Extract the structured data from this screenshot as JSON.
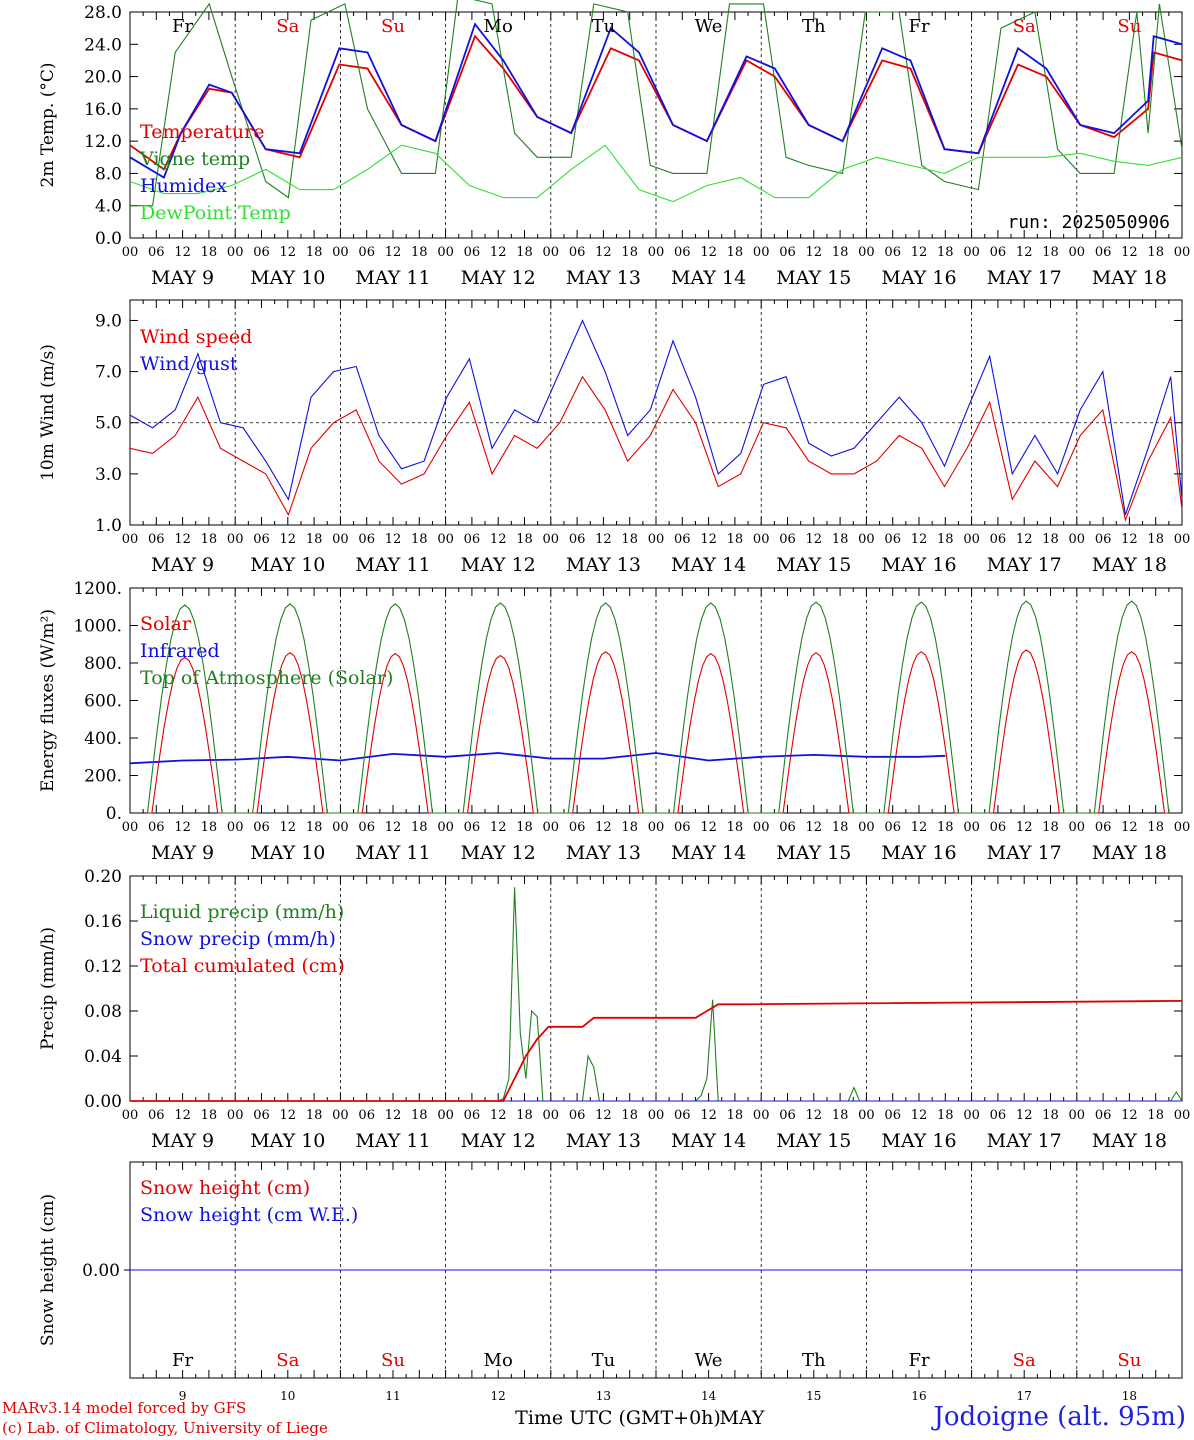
{
  "colors": {
    "red": "#e00000",
    "green_dark": "#208020",
    "blue": "#1010e0",
    "green_light": "#30e030",
    "axis": "#000000"
  },
  "time_axis": {
    "hour_ticks": [
      "00",
      "06",
      "12",
      "18"
    ],
    "final_tick": "00",
    "days": [
      "MAY 9",
      "MAY 10",
      "MAY 11",
      "MAY 12",
      "MAY 13",
      "MAY 14",
      "MAY 15",
      "MAY 16",
      "MAY 17",
      "MAY 18"
    ],
    "weekdays": [
      "Fr",
      "Sa",
      "Su",
      "Mo",
      "Tu",
      "We",
      "Th",
      "Fr",
      "Sa",
      "Su"
    ],
    "weekday_colors": [
      "#000000",
      "#e00000",
      "#e00000",
      "#000000",
      "#000000",
      "#000000",
      "#000000",
      "#000000",
      "#e00000",
      "#e00000"
    ],
    "day_numbers": [
      "9",
      "10",
      "11",
      "12",
      "13",
      "14",
      "15",
      "16",
      "17",
      "18"
    ],
    "title": "Time UTC (GMT+0h)",
    "month": "MAY"
  },
  "footer": {
    "credit_line1": "MARv3.14 model forced by GFS",
    "credit_line2": "(c) Lab. of Climatology, University of Liege",
    "station": "Jodoigne (alt. 95m)"
  },
  "chart_data": [
    {
      "id": "temperature",
      "type": "line",
      "ylabel": "2m Temp. (°C)",
      "ylim": [
        0,
        28
      ],
      "yticks": [
        "0.0",
        "4.0",
        "8.0",
        "12.0",
        "16.0",
        "20.0",
        "24.0",
        "28.0"
      ],
      "annotation": "run: 2025050906",
      "x_unit": "hours since May 9 00 UTC",
      "series": [
        {
          "name": "Temperature",
          "color": "#e00000",
          "x": [
            0,
            6,
            9,
            14,
            18,
            24,
            30,
            37,
            42,
            48,
            54,
            61,
            66,
            72,
            78,
            85,
            90,
            96,
            102,
            109,
            114,
            120,
            126,
            133,
            138,
            144,
            150,
            157,
            162,
            168,
            174,
            181,
            186,
            180
          ],
          "y": [
            11.5,
            8.5,
            13,
            18.5,
            18,
            11,
            10,
            21.5,
            21,
            14,
            12,
            25,
            21,
            15,
            13,
            23.5,
            22,
            14,
            12,
            22,
            20,
            14,
            12,
            22,
            21,
            11,
            10.5,
            21.5,
            20,
            14,
            12.5,
            23,
            22,
            16
          ]
        },
        {
          "name": "Vigne temp",
          "color": "#208020",
          "x": [
            0,
            4,
            8,
            14,
            18,
            24,
            28,
            32,
            38,
            42,
            48,
            54,
            58,
            64,
            68,
            72,
            78,
            82,
            88,
            92,
            96,
            102,
            106,
            112,
            116,
            120,
            126,
            130,
            136,
            140,
            144,
            150,
            154,
            160,
            164,
            168,
            174,
            178,
            182,
            186,
            180
          ],
          "y": [
            4,
            4,
            23,
            29,
            20,
            7,
            5,
            27,
            29,
            16,
            8,
            8,
            30,
            29,
            13,
            10,
            10,
            29,
            28,
            9,
            8,
            8,
            29,
            29,
            10,
            9,
            8,
            28,
            28,
            9,
            7,
            6,
            26,
            28,
            11,
            8,
            8,
            28,
            29,
            11,
            13
          ]
        },
        {
          "name": "Humidex",
          "color": "#1010e0",
          "x": [
            0,
            6,
            9,
            14,
            18,
            24,
            30,
            37,
            42,
            48,
            54,
            61,
            66,
            72,
            78,
            85,
            90,
            96,
            102,
            109,
            114,
            120,
            126,
            133,
            138,
            144,
            150,
            157,
            162,
            168,
            174,
            181,
            186,
            180
          ],
          "y": [
            10,
            7.5,
            13,
            19,
            18,
            11,
            10.5,
            23.5,
            23,
            14,
            12,
            26.5,
            22,
            15,
            13,
            26,
            23,
            14,
            12,
            22.5,
            21,
            14,
            12,
            23.5,
            22,
            11,
            10.5,
            23.5,
            21,
            14,
            13,
            25,
            24,
            17
          ]
        },
        {
          "name": "DewPoint Temp",
          "color": "#30e030",
          "x": [
            0,
            6,
            12,
            18,
            24,
            30,
            36,
            42,
            48,
            54,
            60,
            66,
            72,
            78,
            84,
            90,
            96,
            102,
            108,
            114,
            120,
            126,
            132,
            138,
            144,
            150,
            156,
            162,
            168,
            174,
            180,
            186
          ],
          "y": [
            7,
            5.5,
            5.5,
            6.5,
            8.5,
            6,
            6,
            8.5,
            11.5,
            10.5,
            6.5,
            5,
            5,
            8.5,
            11.5,
            6,
            4.5,
            6.5,
            7.5,
            5,
            5,
            8.5,
            10,
            9,
            8,
            10,
            10,
            10,
            10.5,
            9.5,
            9,
            10
          ]
        }
      ]
    },
    {
      "id": "wind",
      "type": "line",
      "ylabel": "10m Wind (m/s)",
      "ylim": [
        1,
        9.8
      ],
      "yticks": [
        "1.0",
        "3.0",
        "5.0",
        "7.0",
        "9.0"
      ],
      "reference_line": 5.0,
      "series": [
        {
          "name": "Wind speed",
          "color": "#e00000",
          "x": [
            0,
            4,
            8,
            12,
            16,
            20,
            24,
            28,
            32,
            36,
            40,
            44,
            48,
            52,
            56,
            60,
            64,
            68,
            72,
            76,
            80,
            84,
            88,
            92,
            96,
            100,
            104,
            108,
            112,
            116,
            120,
            124,
            128,
            132,
            136,
            140,
            144,
            148,
            152,
            156,
            160,
            164,
            168,
            172,
            176,
            180,
            184,
            186
          ],
          "y": [
            4,
            3.8,
            4.5,
            6,
            4,
            3.5,
            3,
            1.4,
            4,
            5,
            5.5,
            3.5,
            2.6,
            3,
            4.5,
            5.8,
            3,
            4.5,
            4,
            5,
            6.8,
            5.5,
            3.5,
            4.5,
            6.3,
            5,
            2.5,
            3,
            5,
            4.8,
            3.5,
            3,
            3,
            3.5,
            4.5,
            4,
            2.5,
            4,
            5.8,
            2,
            3.5,
            2.5,
            4.5,
            5.5,
            1.2,
            3.5,
            5.2,
            1.6
          ]
        },
        {
          "name": "Wind gust",
          "color": "#1010e0",
          "x": [
            0,
            4,
            8,
            12,
            16,
            20,
            24,
            28,
            32,
            36,
            40,
            44,
            48,
            52,
            56,
            60,
            64,
            68,
            72,
            76,
            80,
            84,
            88,
            92,
            96,
            100,
            104,
            108,
            112,
            116,
            120,
            124,
            128,
            132,
            136,
            140,
            144,
            148,
            152,
            156,
            160,
            164,
            168,
            172,
            176,
            180,
            184,
            186
          ],
          "y": [
            5.3,
            4.8,
            5.5,
            7.7,
            5,
            4.8,
            3.5,
            2,
            6,
            7,
            7.2,
            4.5,
            3.2,
            3.5,
            6,
            7.5,
            4,
            5.5,
            5,
            7,
            9,
            7,
            4.5,
            5.5,
            8.2,
            6,
            3,
            3.8,
            6.5,
            6.8,
            4.2,
            3.7,
            4,
            5,
            6,
            5,
            3.3,
            5.5,
            7.6,
            3,
            4.5,
            3,
            5.5,
            7,
            1.4,
            4,
            6.8,
            2
          ]
        }
      ]
    },
    {
      "id": "energy",
      "type": "line",
      "ylabel": "Energy fluxes (W/m²)",
      "ylim": [
        0,
        1200
      ],
      "yticks": [
        "0.",
        "200.",
        "400.",
        "600.",
        "800.",
        "1000.",
        "1200."
      ],
      "series": [
        {
          "name": "Solar",
          "color": "#e00000",
          "peak_values": [
            830,
            855,
            850,
            840,
            860,
            850,
            855,
            860,
            870,
            860
          ]
        },
        {
          "name": "Infrared",
          "color": "#1010e0",
          "x": [
            0,
            12,
            24,
            36,
            48,
            60,
            72,
            84,
            96,
            108,
            120,
            132,
            144,
            156,
            168,
            180,
            186
          ],
          "y": [
            265,
            280,
            285,
            300,
            280,
            315,
            300,
            320,
            290,
            290,
            320,
            280,
            300,
            310,
            300,
            300,
            305
          ]
        },
        {
          "name": "Top of Atmosphere (Solar)",
          "color": "#208020",
          "peak_values": [
            1110,
            1115,
            1115,
            1120,
            1120,
            1120,
            1125,
            1125,
            1130,
            1130
          ]
        }
      ]
    },
    {
      "id": "precip",
      "type": "line",
      "ylabel": "Precip (mm/h)",
      "ylim": [
        0,
        0.2
      ],
      "yticks": [
        "0.00",
        "0.04",
        "0.08",
        "0.12",
        "0.16",
        "0.20"
      ],
      "series": [
        {
          "name": "Liquid precip (mm/h)",
          "color": "#208020",
          "x": [
            0,
            65,
            66,
            67,
            68,
            69,
            70,
            71,
            72,
            73,
            74,
            80,
            81,
            82,
            83,
            84,
            100,
            101,
            102,
            103,
            104,
            110,
            111,
            112,
            113,
            114,
            120,
            127,
            128,
            129,
            184,
            185,
            186
          ],
          "y": [
            0,
            0,
            0.002,
            0.02,
            0.19,
            0.06,
            0.02,
            0.08,
            0.075,
            0,
            0,
            0,
            0.04,
            0.03,
            0,
            0,
            0,
            0.005,
            0.02,
            0.09,
            0,
            0,
            0,
            0,
            0,
            0,
            0,
            0,
            0.012,
            0,
            0,
            0.008,
            0
          ]
        },
        {
          "name": "Snow precip (mm/h)",
          "color": "#1010e0",
          "x": [
            0,
            186
          ],
          "y": [
            0,
            0
          ]
        },
        {
          "name": "Total cumulated (cm)",
          "color": "#e00000",
          "x": [
            0,
            66,
            68,
            70,
            72,
            74,
            78,
            80,
            82,
            84,
            100,
            102,
            104,
            108,
            186
          ],
          "y": [
            0,
            0,
            0.02,
            0.04,
            0.055,
            0.066,
            0.066,
            0.066,
            0.074,
            0.074,
            0.074,
            0.08,
            0.086,
            0.086,
            0.089
          ]
        }
      ]
    },
    {
      "id": "snow",
      "type": "line",
      "ylabel": "Snow height (cm)",
      "yticks": [
        "0.00"
      ],
      "series": [
        {
          "name": "Snow height (cm)",
          "color": "#e00000",
          "x": [
            0,
            186
          ],
          "y": [
            0,
            0
          ]
        },
        {
          "name": "Snow height (cm W.E.)",
          "color": "#1010e0",
          "x": [
            0,
            186
          ],
          "y": [
            0,
            0
          ]
        }
      ]
    }
  ]
}
